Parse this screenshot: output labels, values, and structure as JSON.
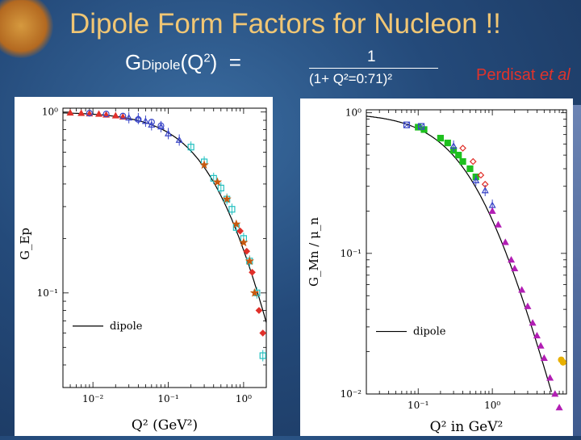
{
  "slide": {
    "title": "Dipole Form Factors for Nucleon !!",
    "formula_lhs_G": "G",
    "formula_lhs_sub": "Dipole",
    "formula_lhs_arg": "(Q",
    "formula_lhs_sup": "2",
    "formula_lhs_close": ")",
    "formula_eq": "=",
    "formula_numerator": "1",
    "formula_denominator": "(1+ Q²=0:71)²",
    "credit_name": "Perdisat ",
    "credit_etal": "et al"
  },
  "colors": {
    "title": "#f0c674",
    "credit": "#e0332b",
    "background": "#244a7a"
  },
  "chart_data": [
    {
      "type": "scatter",
      "log_x": true,
      "log_y": true,
      "xlim": [
        0.004,
        2.0
      ],
      "ylim": [
        0.03,
        1.05
      ],
      "xticks": [
        0.01,
        0.1,
        1
      ],
      "xtick_labels": [
        "10⁻²",
        "10⁻¹",
        "10⁰"
      ],
      "yticks": [
        1,
        0.1
      ],
      "ytick_labels": [
        "10⁰",
        "10⁻¹"
      ],
      "xlabel": "Q² (GeV²)",
      "ylabel": "G_Ep",
      "legend": [
        {
          "label": "dipole",
          "style": "line"
        }
      ],
      "legend_position": "bottom-left",
      "curve": {
        "name": "dipole",
        "formula": "1/(1+Q²/0.71)²"
      },
      "series": [
        {
          "marker": "triangle-filled",
          "color": "#e0302a",
          "points": [
            [
              0.005,
              0.99
            ],
            [
              0.007,
              0.985
            ],
            [
              0.009,
              0.98
            ],
            [
              0.012,
              0.975
            ],
            [
              0.015,
              0.965
            ],
            [
              0.02,
              0.955
            ],
            [
              0.025,
              0.94
            ]
          ]
        },
        {
          "marker": "triangle-open",
          "color": "#3a46c8",
          "points": [
            [
              0.03,
              0.93
            ],
            [
              0.04,
              0.92
            ],
            [
              0.05,
              0.89
            ],
            [
              0.06,
              0.85
            ],
            [
              0.08,
              0.83
            ],
            [
              0.1,
              0.76
            ],
            [
              0.14,
              0.7
            ]
          ]
        },
        {
          "marker": "circle-open",
          "color": "#3a46c8",
          "points": [
            [
              0.009,
              0.985
            ],
            [
              0.015,
              0.975
            ],
            [
              0.025,
              0.95
            ],
            [
              0.04,
              0.91
            ],
            [
              0.06,
              0.88
            ],
            [
              0.08,
              0.84
            ]
          ]
        },
        {
          "marker": "square-open",
          "color": "#22c0c0",
          "points": [
            [
              0.2,
              0.64
            ],
            [
              0.3,
              0.53
            ],
            [
              0.4,
              0.43
            ],
            [
              0.5,
              0.38
            ],
            [
              0.6,
              0.33
            ],
            [
              0.7,
              0.29
            ],
            [
              0.8,
              0.23
            ],
            [
              1.0,
              0.2
            ],
            [
              1.2,
              0.15
            ],
            [
              1.5,
              0.1
            ],
            [
              1.8,
              0.045
            ]
          ]
        },
        {
          "marker": "star",
          "color": "#c85a10",
          "points": [
            [
              0.3,
              0.51
            ],
            [
              0.45,
              0.41
            ],
            [
              0.6,
              0.33
            ],
            [
              0.8,
              0.24
            ],
            [
              1.0,
              0.19
            ],
            [
              1.2,
              0.15
            ],
            [
              1.4,
              0.1
            ]
          ]
        },
        {
          "marker": "diamond-filled",
          "color": "#e0302a",
          "points": [
            [
              0.9,
              0.22
            ],
            [
              1.1,
              0.17
            ],
            [
              1.3,
              0.13
            ],
            [
              1.6,
              0.08
            ],
            [
              1.8,
              0.06
            ]
          ]
        }
      ]
    },
    {
      "type": "scatter",
      "log_x": true,
      "log_y": true,
      "xlim": [
        0.02,
        10
      ],
      "ylim": [
        0.01,
        1.05
      ],
      "xticks": [
        0.1,
        1
      ],
      "xtick_labels": [
        "10⁻¹",
        "10⁰"
      ],
      "yticks": [
        1,
        0.1,
        0.01
      ],
      "ytick_labels": [
        "10⁰",
        "10⁻¹",
        "10⁻²"
      ],
      "xlabel": "Q² in GeV²",
      "ylabel": "G_Mn / μ_n",
      "legend": [
        {
          "label": "dipole",
          "style": "line"
        }
      ],
      "legend_position": "bottom-left",
      "curve": {
        "name": "dipole",
        "formula": "1/(1+Q²/0.71)²"
      },
      "series": [
        {
          "marker": "square-filled",
          "color": "#1ec01e",
          "points": [
            [
              0.1,
              0.79
            ],
            [
              0.12,
              0.76
            ],
            [
              0.2,
              0.66
            ],
            [
              0.25,
              0.61
            ],
            [
              0.3,
              0.54
            ],
            [
              0.35,
              0.5
            ],
            [
              0.4,
              0.45
            ],
            [
              0.5,
              0.4
            ],
            [
              0.6,
              0.35
            ]
          ]
        },
        {
          "marker": "square-cross",
          "color": "#3a46c8",
          "points": [
            [
              0.07,
              0.82
            ],
            [
              0.11,
              0.8
            ]
          ]
        },
        {
          "marker": "triangle-open",
          "color": "#3a46c8",
          "points": [
            [
              0.3,
              0.58
            ],
            [
              0.6,
              0.33
            ],
            [
              0.8,
              0.28
            ],
            [
              1.0,
              0.22
            ]
          ]
        },
        {
          "marker": "diamond-open",
          "color": "#e0302a",
          "points": [
            [
              0.4,
              0.56
            ],
            [
              0.55,
              0.45
            ],
            [
              0.7,
              0.36
            ],
            [
              0.8,
              0.31
            ]
          ]
        },
        {
          "marker": "triangle-filled",
          "color": "#b21eb4",
          "points": [
            [
              1.0,
              0.2
            ],
            [
              1.2,
              0.16
            ],
            [
              1.5,
              0.12
            ],
            [
              1.8,
              0.09
            ],
            [
              2.0,
              0.078
            ],
            [
              2.5,
              0.055
            ],
            [
              3.0,
              0.042
            ],
            [
              3.5,
              0.032
            ],
            [
              4.0,
              0.026
            ],
            [
              4.5,
              0.022
            ],
            [
              5.0,
              0.018
            ],
            [
              6.0,
              0.013
            ],
            [
              7.0,
              0.01
            ],
            [
              8.0,
              0.008
            ]
          ]
        },
        {
          "marker": "circle-filled",
          "color": "#e8b000",
          "points": [
            [
              8.5,
              0.0175
            ],
            [
              9.0,
              0.0168
            ]
          ]
        }
      ]
    }
  ]
}
